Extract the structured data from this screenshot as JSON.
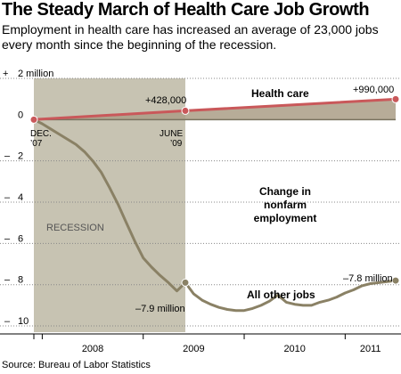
{
  "title": "The Steady March of Health Care Job Growth",
  "subtitle": "Employment in health care has increased an average of 23,000 jobs every month since the beginning of the recession.",
  "source": "Source: Bureau of Labor Statistics",
  "chart_data": {
    "type": "line",
    "ylabel": "",
    "ylim": [
      -10.3,
      2
    ],
    "y_ticks": [
      {
        "value": 2,
        "label": "2 million"
      },
      {
        "value": 0,
        "label": "0"
      },
      {
        "value": -2,
        "label": "2"
      },
      {
        "value": -4,
        "label": "4"
      },
      {
        "value": -6,
        "label": "6"
      },
      {
        "value": -8,
        "label": "8"
      },
      {
        "value": -10,
        "label": "10"
      }
    ],
    "y_plus_sign": "+",
    "y_minus_sign": "–",
    "xlim": [
      2007.917,
      2011.5
    ],
    "x_year_labels": [
      {
        "x": 2008.5,
        "label": "2008"
      },
      {
        "x": 2009.5,
        "label": "2009"
      },
      {
        "x": 2010.5,
        "label": "2010"
      },
      {
        "x": 2011.25,
        "label": "2011"
      }
    ],
    "x_year_ticks": [
      2008,
      2009,
      2010,
      2011
    ],
    "grid": true,
    "recession": {
      "start": 2007.917,
      "end": 2009.417,
      "label": "RECESSION"
    },
    "shading_color": "#c7c3b2",
    "series": [
      {
        "name": "Health care",
        "color": "#c9585a",
        "points": [
          [
            2007.917,
            0
          ],
          [
            2009.417,
            0.428
          ],
          [
            2011.5,
            0.99
          ]
        ]
      },
      {
        "name": "All other jobs",
        "color": "#8a8165",
        "points": [
          [
            2007.917,
            0
          ],
          [
            2008.0,
            -0.2
          ],
          [
            2008.083,
            -0.45
          ],
          [
            2008.167,
            -0.7
          ],
          [
            2008.25,
            -0.95
          ],
          [
            2008.333,
            -1.2
          ],
          [
            2008.417,
            -1.55
          ],
          [
            2008.5,
            -2.0
          ],
          [
            2008.583,
            -2.55
          ],
          [
            2008.667,
            -3.3
          ],
          [
            2008.75,
            -4.1
          ],
          [
            2008.833,
            -5.0
          ],
          [
            2008.917,
            -5.9
          ],
          [
            2009.0,
            -6.7
          ],
          [
            2009.083,
            -7.15
          ],
          [
            2009.167,
            -7.55
          ],
          [
            2009.25,
            -7.9
          ],
          [
            2009.333,
            -8.3
          ],
          [
            2009.417,
            -7.9
          ],
          [
            2009.5,
            -8.45
          ],
          [
            2009.583,
            -8.75
          ],
          [
            2009.667,
            -8.95
          ],
          [
            2009.75,
            -9.1
          ],
          [
            2009.833,
            -9.2
          ],
          [
            2009.917,
            -9.25
          ],
          [
            2010.0,
            -9.25
          ],
          [
            2010.083,
            -9.15
          ],
          [
            2010.167,
            -9.0
          ],
          [
            2010.25,
            -8.8
          ],
          [
            2010.333,
            -8.5
          ],
          [
            2010.417,
            -8.85
          ],
          [
            2010.5,
            -8.95
          ],
          [
            2010.583,
            -9.0
          ],
          [
            2010.667,
            -9.0
          ],
          [
            2010.75,
            -8.85
          ],
          [
            2010.833,
            -8.75
          ],
          [
            2010.917,
            -8.6
          ],
          [
            2011.0,
            -8.4
          ],
          [
            2011.083,
            -8.25
          ],
          [
            2011.167,
            -8.05
          ],
          [
            2011.25,
            -7.95
          ],
          [
            2011.333,
            -7.9
          ],
          [
            2011.5,
            -7.8
          ]
        ]
      }
    ],
    "markers": [
      {
        "x": 2007.917,
        "y": 0,
        "series": "Health care"
      },
      {
        "x": 2009.417,
        "y": 0.428,
        "series": "Health care"
      },
      {
        "x": 2011.5,
        "y": 0.99,
        "series": "Health care"
      },
      {
        "x": 2009.417,
        "y": -7.9,
        "series": "All other jobs"
      },
      {
        "x": 2011.5,
        "y": -7.8,
        "series": "All other jobs"
      }
    ],
    "annotations": {
      "dec07_line1": "DEC.",
      "dec07_line2": "’07",
      "june09_line1": "JUNE",
      "june09_line2": "’09",
      "plus_428000": "+428,000",
      "plus_990000": "+990,000",
      "health_care": "Health care",
      "change_line1": "Change in",
      "change_line2": "nonfarm",
      "change_line3": "employment",
      "minus_7_9": "–7.9 million",
      "minus_7_8": "–7.8 million",
      "all_other_jobs": "All other jobs"
    }
  }
}
